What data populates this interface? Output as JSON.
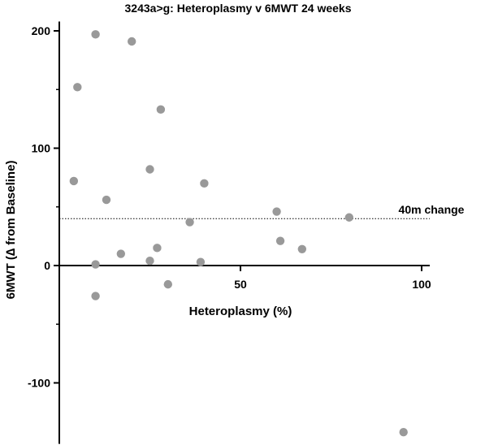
{
  "chart_data": {
    "type": "scatter",
    "title": "3243a>g: Heteroplasmy v 6MWT 24 weeks",
    "xlabel": "Heteroplasmy (%)",
    "ylabel": "6MWT (∆ from Baseline)",
    "xlim": [
      -2,
      102
    ],
    "ylim": [
      -152,
      208
    ],
    "xticks": [
      50,
      100
    ],
    "yticks": [
      -100,
      0,
      100,
      200
    ],
    "grid": false,
    "point_color": "#999999",
    "reference_line": {
      "y": 40,
      "label": "40m change",
      "style": "dotted"
    },
    "points": [
      {
        "x": 10,
        "y": 197
      },
      {
        "x": 20,
        "y": 191
      },
      {
        "x": 5,
        "y": 152
      },
      {
        "x": 28,
        "y": 133
      },
      {
        "x": 4,
        "y": 72
      },
      {
        "x": 25,
        "y": 82
      },
      {
        "x": 40,
        "y": 70
      },
      {
        "x": 13,
        "y": 56
      },
      {
        "x": 60,
        "y": 46
      },
      {
        "x": 36,
        "y": 37
      },
      {
        "x": 80,
        "y": 41
      },
      {
        "x": 61,
        "y": 21
      },
      {
        "x": 27,
        "y": 15
      },
      {
        "x": 67,
        "y": 14
      },
      {
        "x": 17,
        "y": 10
      },
      {
        "x": 10,
        "y": 1
      },
      {
        "x": 25,
        "y": 4
      },
      {
        "x": 39,
        "y": 3
      },
      {
        "x": 30,
        "y": -16
      },
      {
        "x": 10,
        "y": -26
      },
      {
        "x": 95,
        "y": -142
      }
    ]
  }
}
